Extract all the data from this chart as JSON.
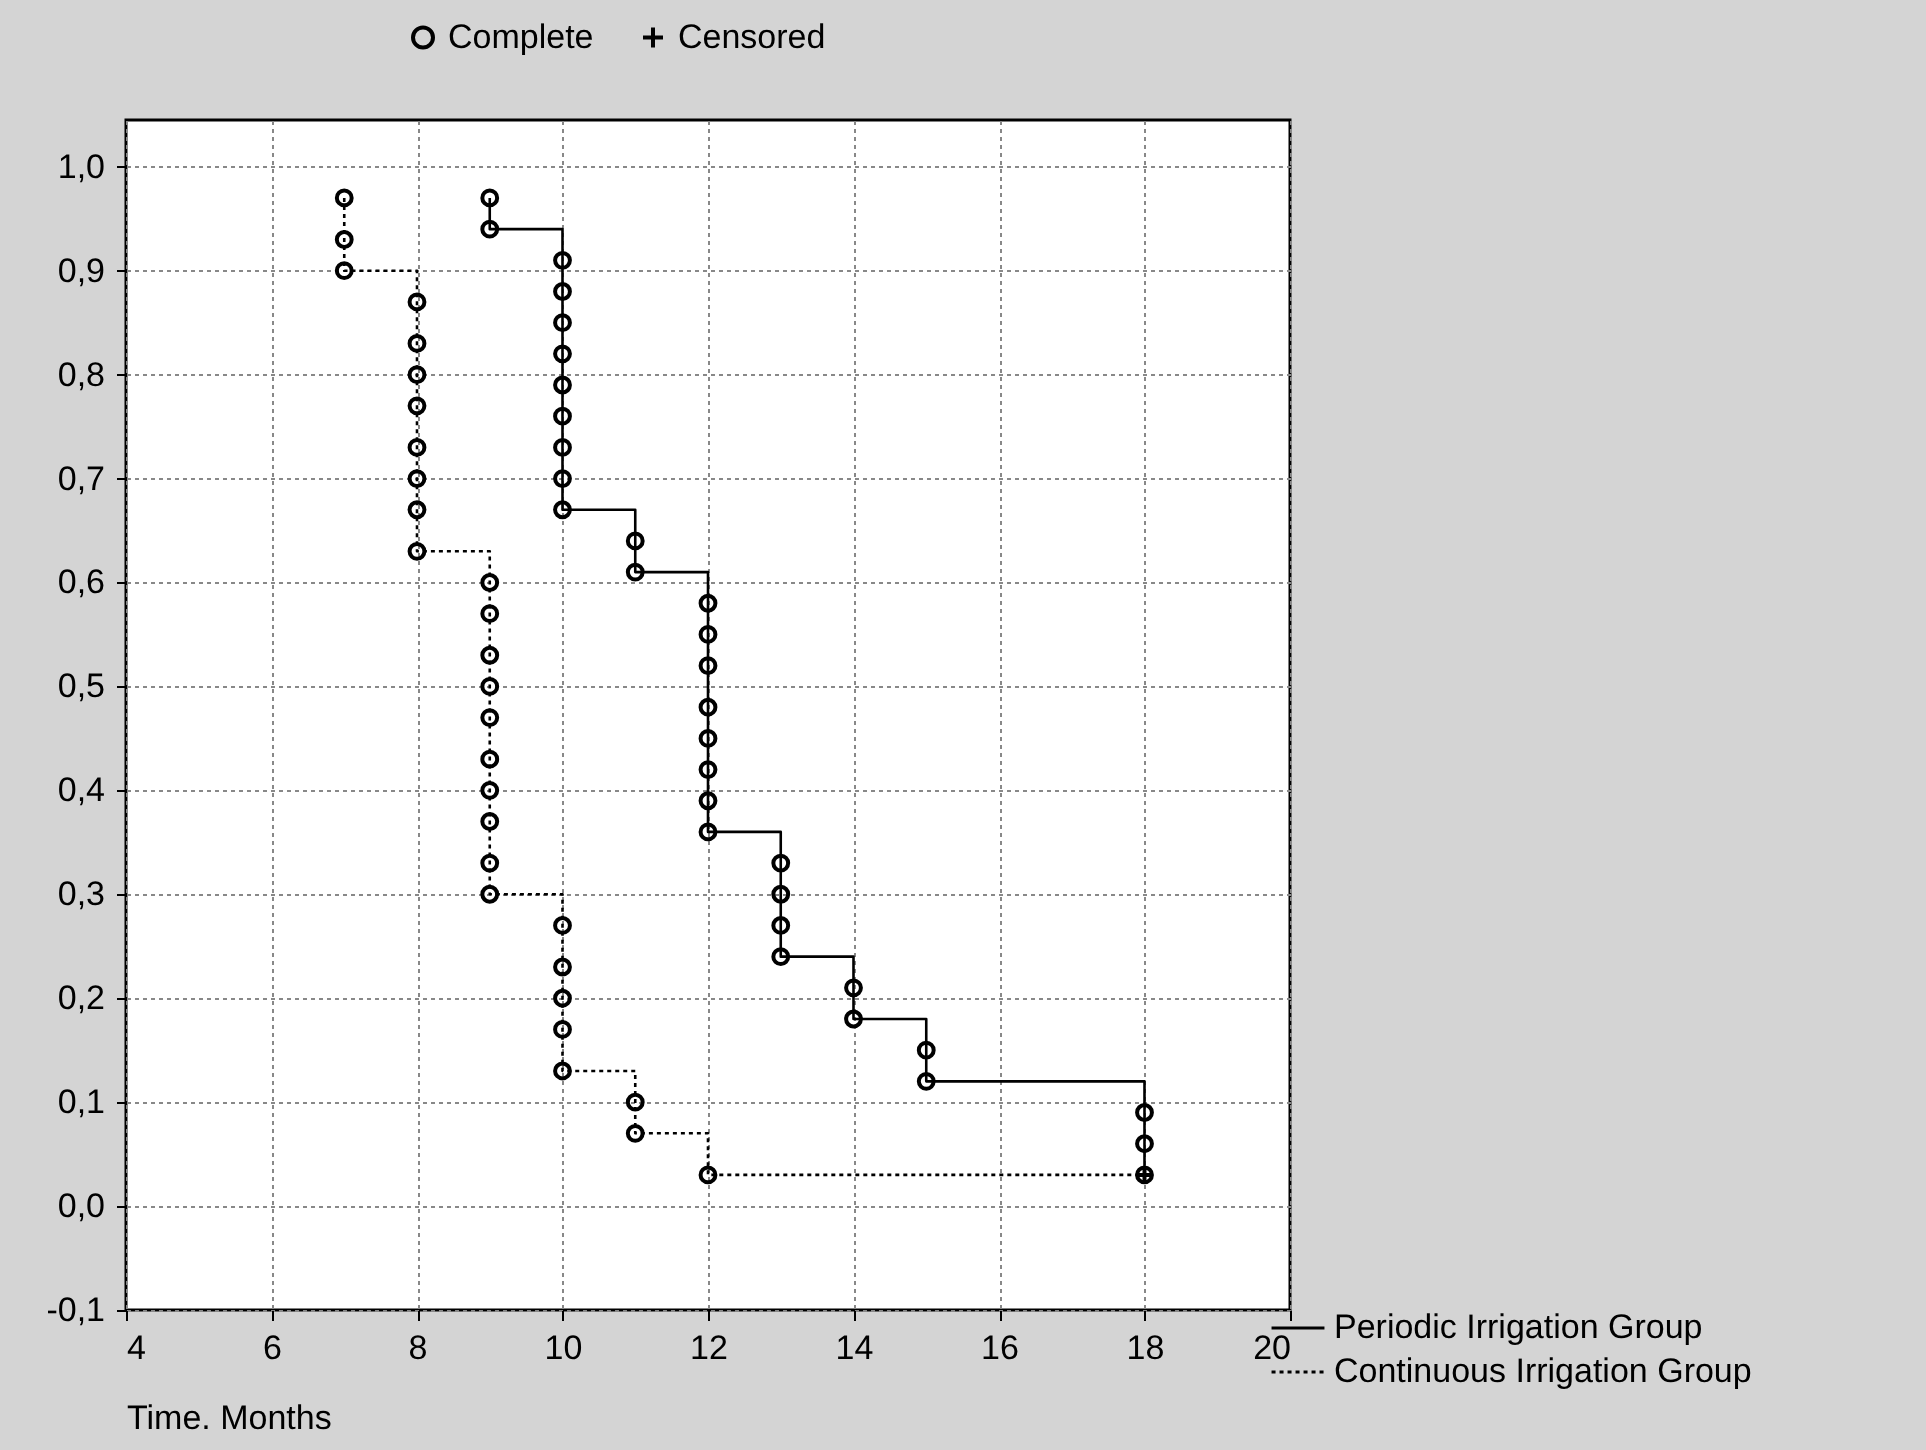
{
  "chart_data": {
    "type": "step",
    "xlabel": "Time. Months",
    "xlim": [
      4,
      20
    ],
    "xticks": [
      4,
      6,
      8,
      10,
      12,
      14,
      16,
      18,
      20
    ],
    "ylim": [
      -0.1,
      1.045
    ],
    "yticks": [
      {
        "value": -0.1,
        "label": "-0,1"
      },
      {
        "value": 0,
        "label": "0,0"
      },
      {
        "value": 0.1,
        "label": "0,1"
      },
      {
        "value": 0.2,
        "label": "0,2"
      },
      {
        "value": 0.3,
        "label": "0,3"
      },
      {
        "value": 0.4,
        "label": "0,4"
      },
      {
        "value": 0.5,
        "label": "0,5"
      },
      {
        "value": 0.6,
        "label": "0,6"
      },
      {
        "value": 0.7,
        "label": "0,7"
      },
      {
        "value": 0.8,
        "label": "0,8"
      },
      {
        "value": 0.9,
        "label": "0,9"
      },
      {
        "value": 1.0,
        "label": "1,0"
      }
    ],
    "grid": true,
    "legend": "top",
    "series": [
      {
        "name": "Periodic Irrigation Group",
        "color": "#000000",
        "line_style": "solid",
        "x": [
          9,
          9,
          10,
          10,
          10,
          10,
          10,
          10,
          10,
          10,
          10,
          11,
          11,
          12,
          12,
          12,
          12,
          12,
          12,
          12,
          12,
          13,
          13,
          13,
          13,
          14,
          14,
          15,
          15,
          18,
          18,
          18
        ],
        "values": [
          0.97,
          0.94,
          0.91,
          0.88,
          0.85,
          0.82,
          0.79,
          0.76,
          0.73,
          0.7,
          0.67,
          0.64,
          0.61,
          0.58,
          0.55,
          0.52,
          0.48,
          0.45,
          0.42,
          0.39,
          0.36,
          0.33,
          0.3,
          0.27,
          0.24,
          0.21,
          0.18,
          0.15,
          0.12,
          0.09,
          0.06,
          0.03
        ]
      },
      {
        "name": "Continuous Irrigation Group",
        "color": "#000000",
        "line_style": "dotted",
        "x": [
          7,
          7,
          7,
          8,
          8,
          8,
          8,
          8,
          8,
          8,
          8,
          9,
          9,
          9,
          9,
          9,
          9,
          9,
          9,
          9,
          9,
          10,
          10,
          10,
          10,
          10,
          11,
          11,
          12,
          18
        ],
        "values": [
          0.97,
          0.93,
          0.9,
          0.87,
          0.83,
          0.8,
          0.77,
          0.73,
          0.7,
          0.67,
          0.63,
          0.6,
          0.57,
          0.53,
          0.5,
          0.47,
          0.43,
          0.4,
          0.37,
          0.33,
          0.3,
          0.27,
          0.23,
          0.2,
          0.17,
          0.13,
          0.1,
          0.07,
          0.03,
          0.03
        ]
      },
      {
        "name": "Complete",
        "type": "scatter",
        "color": "#000000",
        "marker": "circle",
        "x": [
          9,
          9,
          10,
          10,
          10,
          10,
          10,
          10,
          10,
          10,
          10,
          11,
          11,
          12,
          12,
          12,
          12,
          12,
          12,
          12,
          12,
          13,
          13,
          13,
          13,
          14,
          14,
          15,
          15,
          18,
          18,
          18,
          7,
          7,
          7,
          8,
          8,
          8,
          8,
          8,
          8,
          8,
          8,
          9,
          9,
          9,
          9,
          9,
          9,
          9,
          9,
          9,
          9,
          10,
          10,
          10,
          10,
          10,
          11,
          11,
          12
        ],
        "values": [
          0.97,
          0.94,
          0.91,
          0.88,
          0.85,
          0.82,
          0.79,
          0.76,
          0.73,
          0.7,
          0.67,
          0.64,
          0.61,
          0.58,
          0.55,
          0.52,
          0.48,
          0.45,
          0.42,
          0.39,
          0.36,
          0.33,
          0.3,
          0.27,
          0.24,
          0.21,
          0.18,
          0.15,
          0.12,
          0.09,
          0.06,
          0.03,
          0.97,
          0.93,
          0.9,
          0.87,
          0.83,
          0.8,
          0.77,
          0.73,
          0.7,
          0.67,
          0.63,
          0.6,
          0.57,
          0.53,
          0.5,
          0.47,
          0.43,
          0.4,
          0.37,
          0.33,
          0.3,
          0.27,
          0.23,
          0.2,
          0.17,
          0.13,
          0.1,
          0.07,
          0.03
        ]
      },
      {
        "name": "Censored",
        "type": "scatter",
        "color": "#000000",
        "marker": "cross",
        "x": [
          18
        ],
        "values": [
          0.03
        ]
      }
    ]
  }
}
